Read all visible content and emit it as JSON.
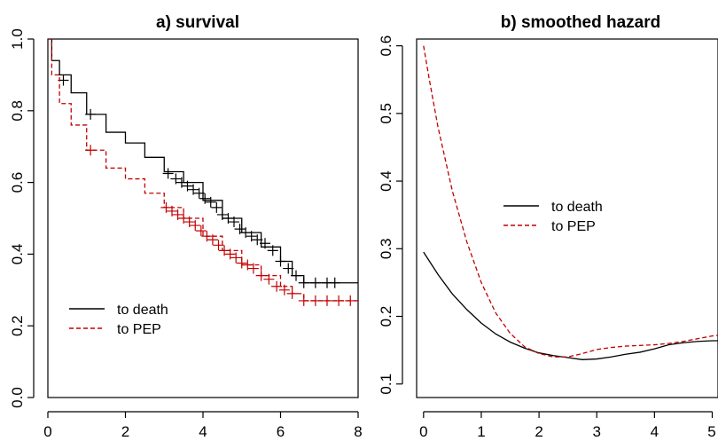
{
  "chart_data": [
    {
      "type": "line",
      "title": "a) survival",
      "xlim": [
        0,
        8
      ],
      "ylim": [
        0,
        1
      ],
      "x_ticks": [
        "0",
        "2",
        "4",
        "6",
        "8"
      ],
      "y_ticks": [
        "0.0",
        "0.2",
        "0.4",
        "0.6",
        "0.8",
        "1.0"
      ],
      "legend_position": "bottom-left",
      "series": [
        {
          "name": "to death",
          "color": "#000000",
          "style": "solid",
          "step": true,
          "x": [
            0,
            0.1,
            0.3,
            0.6,
            1.0,
            1.5,
            2.0,
            2.5,
            3.0,
            3.5,
            4.0,
            4.5,
            5.0,
            5.5,
            6.0,
            6.3,
            6.6,
            7.0,
            7.4,
            7.8
          ],
          "y": [
            1.0,
            0.94,
            0.9,
            0.85,
            0.79,
            0.74,
            0.71,
            0.67,
            0.63,
            0.6,
            0.55,
            0.5,
            0.46,
            0.42,
            0.38,
            0.34,
            0.32,
            0.32,
            0.32,
            0.32
          ],
          "censor_marks": [
            [
              0.4,
              0.885
            ],
            [
              1.1,
              0.79
            ],
            [
              3.1,
              0.625
            ],
            [
              3.3,
              0.61
            ],
            [
              3.45,
              0.6
            ],
            [
              3.6,
              0.59
            ],
            [
              3.75,
              0.58
            ],
            [
              3.9,
              0.57
            ],
            [
              4.05,
              0.555
            ],
            [
              4.2,
              0.545
            ],
            [
              4.35,
              0.53
            ],
            [
              4.5,
              0.51
            ],
            [
              4.65,
              0.5
            ],
            [
              4.8,
              0.49
            ],
            [
              4.95,
              0.47
            ],
            [
              5.1,
              0.46
            ],
            [
              5.25,
              0.45
            ],
            [
              5.4,
              0.44
            ],
            [
              5.6,
              0.43
            ],
            [
              5.8,
              0.41
            ],
            [
              6.0,
              0.38
            ],
            [
              6.2,
              0.36
            ],
            [
              6.4,
              0.34
            ],
            [
              6.6,
              0.32
            ],
            [
              6.9,
              0.32
            ],
            [
              7.2,
              0.32
            ],
            [
              7.4,
              0.32
            ]
          ]
        },
        {
          "name": "to PEP",
          "color": "#c00000",
          "style": "dashed",
          "step": true,
          "x": [
            0,
            0.1,
            0.3,
            0.6,
            1.0,
            1.5,
            2.0,
            2.5,
            3.0,
            3.5,
            4.0,
            4.5,
            5.0,
            5.5,
            6.0,
            6.3,
            6.6,
            7.0,
            7.4,
            7.8
          ],
          "y": [
            1.0,
            0.9,
            0.82,
            0.76,
            0.69,
            0.64,
            0.61,
            0.57,
            0.53,
            0.5,
            0.45,
            0.41,
            0.37,
            0.34,
            0.31,
            0.29,
            0.27,
            0.27,
            0.27,
            0.27
          ],
          "censor_marks": [
            [
              1.1,
              0.69
            ],
            [
              3.05,
              0.53
            ],
            [
              3.2,
              0.52
            ],
            [
              3.35,
              0.51
            ],
            [
              3.5,
              0.5
            ],
            [
              3.65,
              0.49
            ],
            [
              3.8,
              0.48
            ],
            [
              3.95,
              0.465
            ],
            [
              4.1,
              0.45
            ],
            [
              4.25,
              0.44
            ],
            [
              4.4,
              0.425
            ],
            [
              4.55,
              0.41
            ],
            [
              4.7,
              0.4
            ],
            [
              4.85,
              0.39
            ],
            [
              5.0,
              0.375
            ],
            [
              5.15,
              0.37
            ],
            [
              5.3,
              0.36
            ],
            [
              5.5,
              0.34
            ],
            [
              5.7,
              0.33
            ],
            [
              5.9,
              0.31
            ],
            [
              6.1,
              0.3
            ],
            [
              6.3,
              0.29
            ],
            [
              6.6,
              0.27
            ],
            [
              6.9,
              0.27
            ],
            [
              7.2,
              0.27
            ],
            [
              7.5,
              0.27
            ],
            [
              7.8,
              0.27
            ]
          ]
        }
      ]
    },
    {
      "type": "line",
      "title": "b) smoothed hazard",
      "xlim": [
        -0.12,
        5.1
      ],
      "ylim": [
        0.08,
        0.61
      ],
      "x_ticks": [
        "0",
        "1",
        "2",
        "3",
        "4",
        "5"
      ],
      "y_ticks": [
        "0.1",
        "0.2",
        "0.3",
        "0.4",
        "0.5",
        "0.6"
      ],
      "legend_position": "middle-left",
      "series": [
        {
          "name": "to death",
          "color": "#000000",
          "style": "solid",
          "x": [
            0,
            0.25,
            0.5,
            0.75,
            1.0,
            1.25,
            1.5,
            1.75,
            2.0,
            2.25,
            2.5,
            2.75,
            3.0,
            3.25,
            3.5,
            3.75,
            4.0,
            4.25,
            4.5,
            4.75,
            5.0,
            5.1
          ],
          "y": [
            0.295,
            0.262,
            0.233,
            0.21,
            0.19,
            0.174,
            0.162,
            0.153,
            0.146,
            0.142,
            0.139,
            0.136,
            0.137,
            0.14,
            0.144,
            0.147,
            0.152,
            0.158,
            0.161,
            0.163,
            0.164,
            0.164
          ]
        },
        {
          "name": "to PEP",
          "color": "#c00000",
          "style": "dashed",
          "x": [
            0,
            0.1,
            0.25,
            0.5,
            0.75,
            1.0,
            1.25,
            1.5,
            1.75,
            2.0,
            2.25,
            2.5,
            2.75,
            3.0,
            3.25,
            3.5,
            3.75,
            4.0,
            4.25,
            4.5,
            4.75,
            5.0,
            5.1
          ],
          "y": [
            0.6,
            0.55,
            0.48,
            0.385,
            0.31,
            0.25,
            0.205,
            0.175,
            0.155,
            0.145,
            0.14,
            0.14,
            0.145,
            0.151,
            0.154,
            0.156,
            0.157,
            0.158,
            0.16,
            0.163,
            0.167,
            0.171,
            0.172
          ]
        }
      ]
    }
  ]
}
